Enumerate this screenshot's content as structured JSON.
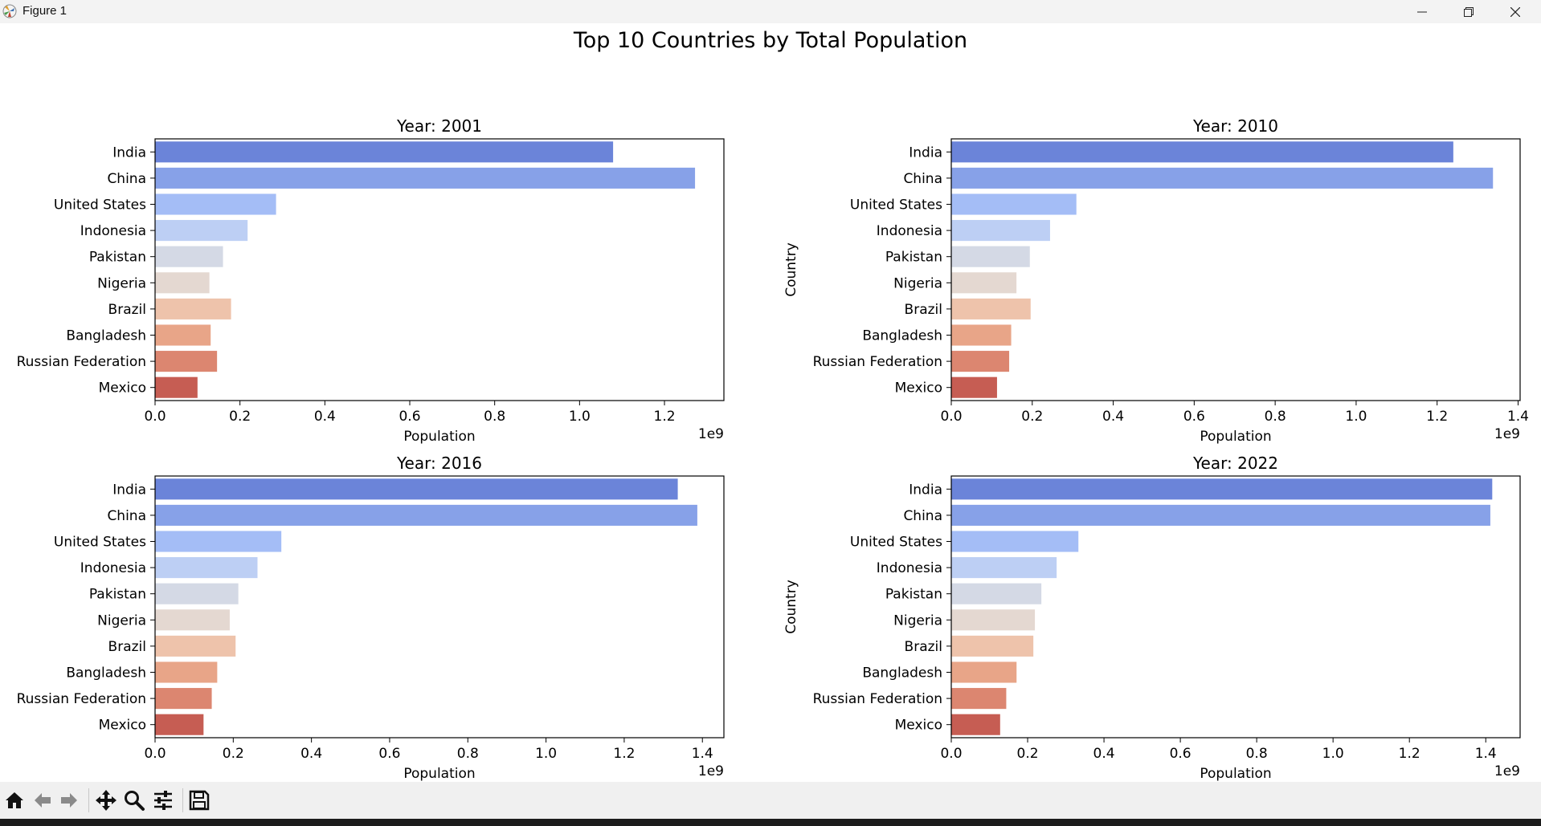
{
  "window": {
    "title": "Figure 1"
  },
  "icons": {
    "app": "matplotlib-icon",
    "minimize": "minimize-icon",
    "maximize": "restore-icon",
    "close": "close-icon",
    "home": "home-icon",
    "back": "back-arrow-icon",
    "forward": "forward-arrow-icon",
    "pan": "move-icon",
    "zoom": "zoom-icon",
    "configure": "configure-subplots-icon",
    "save": "save-icon"
  },
  "colors": {
    "bar_palette": [
      "#6b84d9",
      "#87a1e8",
      "#a4bdf6",
      "#bdcff4",
      "#d4d9e5",
      "#e4d8d1",
      "#eec3ab",
      "#e8a588",
      "#dc8670",
      "#c65d53"
    ]
  },
  "chart_data": {
    "suptitle": "Top 10 Countries by Total Population",
    "type": "bar",
    "orientation": "horizontal",
    "categories": [
      "India",
      "China",
      "United States",
      "Indonesia",
      "Pakistan",
      "Nigeria",
      "Brazil",
      "Bangladesh",
      "Russian Federation",
      "Mexico"
    ],
    "xlabel": "Population",
    "ylabel": "Country",
    "offset_text": "1e9",
    "subplots": [
      {
        "title": "Year: 2001",
        "xlim": [
          0,
          1.34
        ],
        "xticks": [
          "0.0",
          "0.2",
          "0.4",
          "0.6",
          "0.8",
          "1.0",
          "1.2"
        ],
        "values": [
          1.079,
          1.272,
          0.285,
          0.218,
          0.16,
          0.128,
          0.179,
          0.131,
          0.146,
          0.1
        ]
      },
      {
        "title": "Year: 2010",
        "xlim": [
          0,
          1.405
        ],
        "xticks": [
          "0.0",
          "0.2",
          "0.4",
          "0.6",
          "0.8",
          "1.0",
          "1.2",
          "1.4"
        ],
        "values": [
          1.24,
          1.338,
          0.309,
          0.244,
          0.194,
          0.161,
          0.196,
          0.148,
          0.143,
          0.113
        ]
      },
      {
        "title": "Year: 2016",
        "xlim": [
          0,
          1.455
        ],
        "xticks": [
          "0.0",
          "0.2",
          "0.4",
          "0.6",
          "0.8",
          "1.0",
          "1.2",
          "1.4"
        ],
        "values": [
          1.337,
          1.387,
          0.323,
          0.262,
          0.213,
          0.191,
          0.206,
          0.159,
          0.145,
          0.124
        ]
      },
      {
        "title": "Year: 2022",
        "xlim": [
          0,
          1.49
        ],
        "xticks": [
          "0.0",
          "0.2",
          "0.4",
          "0.6",
          "0.8",
          "1.0",
          "1.2",
          "1.4"
        ],
        "values": [
          1.417,
          1.412,
          0.333,
          0.276,
          0.236,
          0.219,
          0.215,
          0.171,
          0.144,
          0.128
        ]
      }
    ]
  }
}
